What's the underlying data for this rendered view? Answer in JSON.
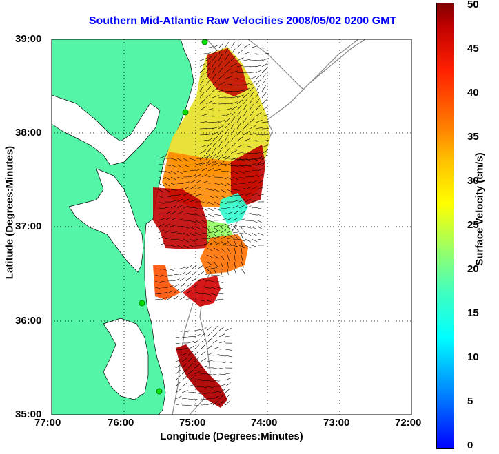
{
  "title": "Southern Mid-Atlantic Raw Velocities 2008/05/02 0200 GMT",
  "x_axis": {
    "label": "Longitude (Degrees:Minutes)",
    "ticks": [
      "77:00",
      "76:00",
      "75:00",
      "74:00",
      "73:00",
      "72:00"
    ]
  },
  "y_axis": {
    "label": "Latitude (Degrees:Minutes)",
    "ticks": [
      "39:00",
      "38:00",
      "37:00",
      "36:00",
      "35:00"
    ]
  },
  "colorbar": {
    "label": "Surface Velocity (cm/s)",
    "ticks": [
      "50",
      "45",
      "40",
      "35",
      "30",
      "25",
      "20",
      "15",
      "10",
      "5",
      "0"
    ],
    "range": [
      0,
      50
    ]
  },
  "colors": {
    "land": "#55f5a8",
    "water": "#ffffff",
    "title": "#0000ff",
    "bathymetry": "#888888",
    "station": "#00dd00"
  }
}
